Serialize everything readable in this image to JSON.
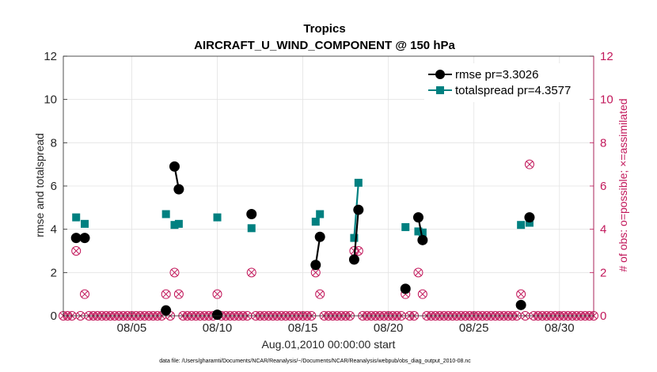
{
  "chart_data": {
    "type": "line",
    "title": "Tropics",
    "subtitle": "AIRCRAFT_U_WIND_COMPONENT @ 150 hPa",
    "xlabel": "Aug.01,2010 00:00:00 start",
    "ylabel": "rmse and totalspread",
    "ylabel_right": "# of obs: o=possible; ×=assimilated",
    "footnote": "data file: /Users/gharamti/Documents/NCAR/Reanalysis/~/Documents/NCAR/Reanalysis/webpub/obs_diag_output_2010-08.nc",
    "xlim": [
      1,
      32
    ],
    "ylim": [
      0,
      12
    ],
    "ylim_right": [
      0,
      12
    ],
    "x_ticks": [
      5,
      10,
      15,
      20,
      25,
      30
    ],
    "x_tick_labels": [
      "08/05",
      "08/10",
      "08/15",
      "08/20",
      "08/25",
      "08/30"
    ],
    "y_ticks": [
      0,
      2,
      4,
      6,
      8,
      10,
      12
    ],
    "y_tick_labels": [
      "0",
      "2",
      "4",
      "6",
      "8",
      "10",
      "12"
    ],
    "y_right_tick_labels": [
      "0",
      "2",
      "4",
      "6",
      "8",
      "10",
      "12"
    ],
    "grid": true,
    "legend_position": "top-right",
    "colors": {
      "rmse": "#000000",
      "totalspread": "#008080",
      "obs": "#c2185b",
      "grid": "#e3e3e3"
    },
    "series": [
      {
        "name": "rmse",
        "legend_label": "rmse pr=3.3026",
        "marker": "circle",
        "segments": [
          [
            [
              1.75,
              3.6
            ]
          ],
          [
            [
              2.25,
              3.6
            ]
          ],
          [
            [
              7.0,
              0.25
            ]
          ],
          [
            [
              7.5,
              6.9
            ],
            [
              7.75,
              5.85
            ]
          ],
          [
            [
              10.0,
              0.05
            ]
          ],
          [
            [
              12.0,
              4.7
            ]
          ],
          [
            [
              15.75,
              2.35
            ],
            [
              16.0,
              3.65
            ]
          ],
          [
            [
              18.0,
              2.6
            ],
            [
              18.25,
              4.9
            ]
          ],
          [
            [
              21.0,
              1.25
            ]
          ],
          [
            [
              21.75,
              4.55
            ],
            [
              22.0,
              3.5
            ]
          ],
          [
            [
              27.75,
              0.5
            ]
          ],
          [
            [
              28.25,
              4.55
            ]
          ]
        ]
      },
      {
        "name": "totalspread",
        "legend_label": "totalspread pr=4.3577",
        "marker": "square",
        "segments": [
          [
            [
              1.75,
              4.55
            ]
          ],
          [
            [
              2.25,
              4.25
            ]
          ],
          [
            [
              7.0,
              4.7
            ]
          ],
          [
            [
              7.5,
              4.2
            ],
            [
              7.75,
              4.25
            ]
          ],
          [
            [
              10.0,
              4.55
            ]
          ],
          [
            [
              12.0,
              4.05
            ]
          ],
          [
            [
              15.75,
              4.35
            ],
            [
              16.0,
              4.7
            ]
          ],
          [
            [
              18.0,
              3.6
            ],
            [
              18.25,
              6.15
            ]
          ],
          [
            [
              21.0,
              4.1
            ]
          ],
          [
            [
              21.75,
              3.9
            ],
            [
              22.0,
              3.85
            ]
          ],
          [
            [
              27.75,
              4.2
            ]
          ],
          [
            [
              28.25,
              4.3
            ]
          ]
        ]
      }
    ],
    "obs_possible": [
      [
        1.75,
        3
      ],
      [
        2.25,
        1
      ],
      [
        7.0,
        1
      ],
      [
        7.5,
        2
      ],
      [
        7.75,
        1
      ],
      [
        10.0,
        1
      ],
      [
        12.0,
        2
      ],
      [
        15.75,
        2
      ],
      [
        16.0,
        1
      ],
      [
        18.0,
        3
      ],
      [
        18.25,
        3
      ],
      [
        21.0,
        1
      ],
      [
        21.75,
        2
      ],
      [
        22.0,
        1
      ],
      [
        27.75,
        1
      ],
      [
        28.25,
        7
      ]
    ],
    "obs_assimilated": [
      [
        1.75,
        3
      ],
      [
        2.25,
        1
      ],
      [
        7.0,
        1
      ],
      [
        7.5,
        2
      ],
      [
        7.75,
        1
      ],
      [
        10.0,
        1
      ],
      [
        12.0,
        2
      ],
      [
        15.75,
        2
      ],
      [
        16.0,
        1
      ],
      [
        18.0,
        3
      ],
      [
        18.25,
        3
      ],
      [
        21.0,
        1
      ],
      [
        21.75,
        2
      ],
      [
        22.0,
        1
      ],
      [
        27.75,
        1
      ],
      [
        28.25,
        7
      ]
    ],
    "obs_zero_step_days": 0.25
  }
}
